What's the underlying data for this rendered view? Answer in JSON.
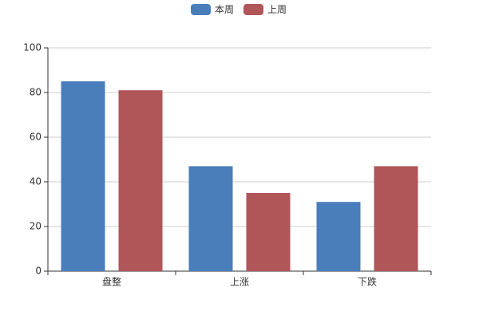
{
  "chart_data": {
    "type": "bar",
    "categories": [
      "盘整",
      "上涨",
      "下跌"
    ],
    "series": [
      {
        "name": "本周",
        "color": "#4a7ebb",
        "values": [
          85,
          47,
          31
        ]
      },
      {
        "name": "上周",
        "color": "#b05558",
        "values": [
          81,
          35,
          47
        ]
      }
    ],
    "ylim": [
      0,
      100
    ],
    "yticks": [
      0,
      20,
      40,
      60,
      80,
      100
    ],
    "grid": true,
    "legend": "top"
  }
}
